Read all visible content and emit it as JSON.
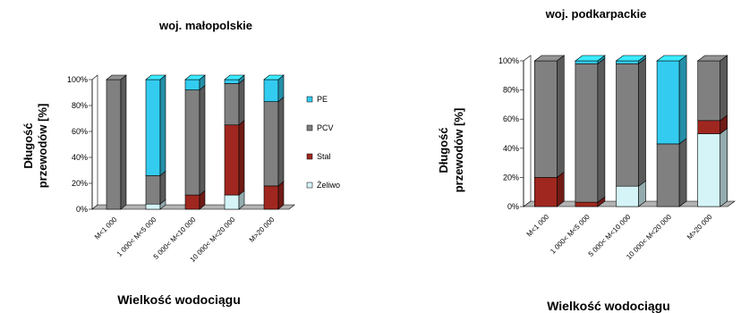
{
  "chart_data": [
    {
      "type": "bar",
      "stacked": true,
      "percent": true,
      "title": "woj. małopolskie",
      "ylabel": "Długość przewodów [%]",
      "ylabel_lines": [
        "Długość",
        "przewodów [%]"
      ],
      "xlabel": "Wielkość wodociągu",
      "ylim": [
        0,
        100
      ],
      "yticks": [
        "0%",
        "20%",
        "40%",
        "60%",
        "80%",
        "100%"
      ],
      "categories": [
        "M<1 000",
        "1 000< M<5 000",
        "5 000< M<10 000",
        "10 000< M<20 000",
        "M>20 000"
      ],
      "series": [
        {
          "name": "Żeliwo",
          "color": "#d4f4f8",
          "values": [
            0,
            4,
            0,
            11,
            0
          ]
        },
        {
          "name": "Stal",
          "color": "#a0271f",
          "values": [
            0,
            0,
            11,
            54,
            18
          ]
        },
        {
          "name": "PCV",
          "color": "#808080",
          "values": [
            100,
            22,
            81,
            32,
            65
          ]
        },
        {
          "name": "PE",
          "color": "#33ccf0",
          "values": [
            0,
            74,
            8,
            3,
            17
          ]
        }
      ],
      "legend": {
        "placement": "right",
        "order": [
          "PE",
          "PCV",
          "Stal",
          "Żeliwo"
        ]
      }
    },
    {
      "type": "bar",
      "stacked": true,
      "percent": true,
      "title": "woj. podkarpackie",
      "ylabel": "Długość przewodów [%]",
      "ylabel_lines": [
        "Długość",
        "przewodów [%]"
      ],
      "xlabel": "Wielkość wodociągu",
      "ylim": [
        0,
        100
      ],
      "yticks": [
        "0%",
        "20%",
        "40%",
        "60%",
        "80%",
        "100%"
      ],
      "categories": [
        "M<1 000",
        "1 000< M<5 000",
        "5 000< M<10 000",
        "10 000< M<20 000",
        "M>20 000"
      ],
      "series": [
        {
          "name": "Żeliwo",
          "color": "#d4f4f8",
          "values": [
            0,
            0,
            14,
            0,
            50
          ]
        },
        {
          "name": "Stal",
          "color": "#a0271f",
          "values": [
            20,
            3,
            0,
            0,
            9
          ]
        },
        {
          "name": "PCV",
          "color": "#808080",
          "values": [
            80,
            95,
            84,
            43,
            41
          ]
        },
        {
          "name": "PE",
          "color": "#33ccf0",
          "values": [
            0,
            2,
            2,
            57,
            0
          ]
        }
      ],
      "legend": null
    }
  ]
}
